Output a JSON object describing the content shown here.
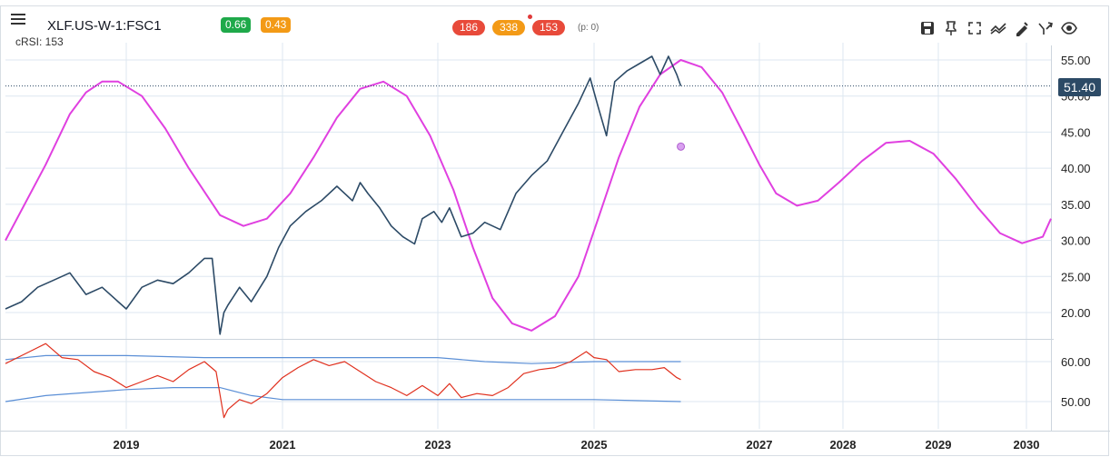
{
  "header": {
    "symbol": "XLF.US-W-1:FSC1",
    "indicator_label": "cRSI: 153",
    "badge_left": "0.66",
    "badge_right": "0.43",
    "pill_1": "186",
    "pill_2": "338",
    "pill_3": "153",
    "p_count": "(p: 0)"
  },
  "toolbar": {
    "icons": [
      "save-icon",
      "pin-icon",
      "fullscreen-icon",
      "compare-icon",
      "draw-icon",
      "cycles-icon",
      "eye-icon"
    ]
  },
  "colors": {
    "price_line": "#2c4a66",
    "cycle_line": "#e040e0",
    "rsi_line": "#e0301e",
    "band_line": "#5b8fd6",
    "badge_green": "#1fa94a",
    "badge_orange": "#f39a16",
    "pill_red": "#e84a3a",
    "pill_orange": "#f39a16",
    "grid": "#dde7f0"
  },
  "current_price": "51.40",
  "chart_data": [
    {
      "type": "line",
      "x_ticks": [
        "2019",
        "2021",
        "2023",
        "2025",
        "2027",
        "2028",
        "2029",
        "2030"
      ],
      "y_ticks": [
        "20.00",
        "25.00",
        "30.00",
        "35.00",
        "40.00",
        "45.00",
        "50.00",
        "55.00"
      ],
      "ylim": [
        15,
        57
      ],
      "xlim": [
        2017.5,
        2030.3
      ],
      "current_value": 51.4,
      "series": [
        {
          "kind": "price",
          "x": [
            2017.5,
            2017.7,
            2017.9,
            2018.1,
            2018.3,
            2018.5,
            2018.7,
            2018.9,
            2019.0,
            2019.2,
            2019.4,
            2019.6,
            2019.8,
            2020.0,
            2020.1,
            2020.2,
            2020.25,
            2020.3,
            2020.45,
            2020.6,
            2020.8,
            2020.95,
            2021.1,
            2021.3,
            2021.5,
            2021.7,
            2021.9,
            2022.0,
            2022.1,
            2022.25,
            2022.4,
            2022.55,
            2022.7,
            2022.8,
            2022.95,
            2023.05,
            2023.15,
            2023.3,
            2023.45,
            2023.6,
            2023.8,
            2024.0,
            2024.2,
            2024.4,
            2024.6,
            2024.8,
            2024.95,
            2025.05,
            2025.15,
            2025.25,
            2025.4,
            2025.55,
            2025.7,
            2025.8,
            2025.9,
            2026.0,
            2026.05
          ],
          "y": [
            20.5,
            21.5,
            23.5,
            24.5,
            25.5,
            22.5,
            23.5,
            21.5,
            20.5,
            23.5,
            24.5,
            24.0,
            25.5,
            27.5,
            27.5,
            17.0,
            20.0,
            21.0,
            23.5,
            21.5,
            25.0,
            29.0,
            32.0,
            34.0,
            35.5,
            37.5,
            35.5,
            38.0,
            36.5,
            34.5,
            32.0,
            30.5,
            29.5,
            33.0,
            34.0,
            32.5,
            34.5,
            30.5,
            31.0,
            32.5,
            31.5,
            36.5,
            39.0,
            41.0,
            45.0,
            49.0,
            52.5,
            48.5,
            44.5,
            52.0,
            53.5,
            54.5,
            55.5,
            53.0,
            55.5,
            53.0,
            51.4
          ]
        },
        {
          "kind": "cycle",
          "x": [
            2017.5,
            2018.0,
            2018.3,
            2018.5,
            2018.7,
            2018.9,
            2019.2,
            2019.5,
            2019.8,
            2020.2,
            2020.5,
            2020.8,
            2021.1,
            2021.4,
            2021.7,
            2022.0,
            2022.3,
            2022.6,
            2022.9,
            2023.2,
            2023.45,
            2023.7,
            2023.95,
            2024.2,
            2024.5,
            2024.8,
            2025.05,
            2025.3,
            2025.55,
            2025.8,
            2026.05,
            2026.3,
            2026.55,
            2026.8,
            2027.0,
            2027.2,
            2027.45,
            2027.7,
            2027.95,
            2028.2,
            2028.45,
            2028.7,
            2028.95,
            2029.2,
            2029.45,
            2029.7,
            2029.95,
            2030.2,
            2030.3
          ],
          "y": [
            30.0,
            40.5,
            47.5,
            50.5,
            52.0,
            52.0,
            50.0,
            45.5,
            40.0,
            33.5,
            32.0,
            33.0,
            36.5,
            41.5,
            47.0,
            51.0,
            52.0,
            50.0,
            44.5,
            37.0,
            29.0,
            22.0,
            18.5,
            17.5,
            19.5,
            25.0,
            33.0,
            41.5,
            48.5,
            53.0,
            55.0,
            54.0,
            50.5,
            45.0,
            40.5,
            36.5,
            34.8,
            35.5,
            38.0,
            41.0,
            43.5,
            43.8,
            42.0,
            38.5,
            34.5,
            31.0,
            29.6,
            30.5,
            33.0
          ]
        }
      ]
    },
    {
      "type": "line",
      "y_ticks": [
        "50.00",
        "60.00"
      ],
      "ylim": [
        44,
        67
      ],
      "series": [
        {
          "kind": "rsi",
          "x": [
            2017.5,
            2017.8,
            2018.0,
            2018.2,
            2018.4,
            2018.6,
            2018.8,
            2019.0,
            2019.2,
            2019.4,
            2019.6,
            2019.8,
            2020.0,
            2020.15,
            2020.25,
            2020.3,
            2020.45,
            2020.6,
            2020.8,
            2021.0,
            2021.2,
            2021.4,
            2021.6,
            2021.8,
            2022.0,
            2022.2,
            2022.4,
            2022.6,
            2022.8,
            2023.0,
            2023.15,
            2023.3,
            2023.5,
            2023.7,
            2023.9,
            2024.1,
            2024.3,
            2024.5,
            2024.7,
            2024.9,
            2025.0,
            2025.15,
            2025.3,
            2025.5,
            2025.7,
            2025.85,
            2026.0,
            2026.05
          ],
          "y": [
            59.5,
            62.5,
            64.5,
            61.0,
            60.5,
            57.5,
            56.0,
            53.5,
            55.0,
            56.5,
            55.0,
            58.0,
            60.0,
            57.5,
            46.0,
            48.0,
            50.5,
            49.5,
            52.0,
            56.0,
            58.5,
            60.5,
            59.0,
            60.0,
            57.5,
            55.0,
            53.5,
            51.5,
            54.0,
            51.5,
            54.5,
            51.0,
            52.0,
            51.5,
            53.5,
            57.0,
            58.0,
            58.5,
            60.0,
            62.5,
            61.0,
            60.5,
            57.5,
            58.0,
            58.0,
            58.5,
            56.0,
            55.5
          ]
        },
        {
          "kind": "upper-band",
          "x": [
            2017.5,
            2018.0,
            2019.0,
            2020.0,
            2021.0,
            2022.0,
            2023.0,
            2023.6,
            2024.2,
            2025.0,
            2026.0,
            2026.05
          ],
          "y": [
            60.5,
            61.5,
            61.5,
            61.0,
            61.0,
            61.0,
            61.0,
            60.0,
            59.5,
            60.0,
            60.0,
            60.0
          ]
        },
        {
          "kind": "lower-band",
          "x": [
            2017.5,
            2018.0,
            2019.0,
            2019.6,
            2020.2,
            2020.6,
            2021.0,
            2022.0,
            2023.0,
            2024.0,
            2025.0,
            2026.05
          ],
          "y": [
            50.0,
            51.5,
            53.0,
            53.5,
            53.5,
            51.5,
            50.5,
            50.5,
            50.5,
            50.5,
            50.5,
            50.0
          ]
        }
      ]
    }
  ]
}
